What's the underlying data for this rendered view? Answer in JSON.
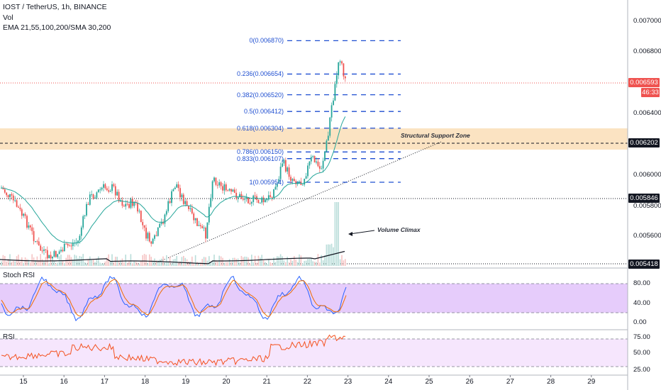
{
  "header": {
    "symbol_line": "IOST / TetherUS, 1h, BINANCE",
    "volume_label": "Vol",
    "ma_label": "EMA 21,55,100,200/SMA 30,200"
  },
  "price_axis": {
    "ticks": [
      "0.007000",
      "0.006800",
      "0.006400",
      "0.006000",
      "0.005800",
      "0.005600"
    ],
    "last_price": "0.006593",
    "countdown": "46:33",
    "support_tag": "0.006202",
    "level_tag": "0.005846",
    "low_tag": "0.005418",
    "colors": {
      "last": "#ef5350",
      "dark": "#131722"
    }
  },
  "time_axis": {
    "labels": [
      "15",
      "16",
      "17",
      "18",
      "19",
      "20",
      "21",
      "22",
      "23",
      "24",
      "25",
      "26",
      "27",
      "28",
      "29"
    ]
  },
  "fibonacci": {
    "levels": [
      {
        "ratio": 0,
        "label": "0(0.006870)",
        "price": 0.00687
      },
      {
        "ratio": 0.236,
        "label": "0.236(0.006654)",
        "price": 0.006654
      },
      {
        "ratio": 0.382,
        "label": "0.382(0.006520)",
        "price": 0.00652
      },
      {
        "ratio": 0.5,
        "label": "0.5(0.006412)",
        "price": 0.006412
      },
      {
        "ratio": 0.618,
        "label": "0.618(0.006304)",
        "price": 0.006304
      },
      {
        "ratio": 0.786,
        "label": "0.786(0.006150)",
        "price": 0.00615
      },
      {
        "ratio": 0.833,
        "label": "0.833(0.006107)",
        "price": 0.006107
      },
      {
        "ratio": 1,
        "label": "1(0.005954)",
        "price": 0.005954
      }
    ],
    "color": "#1f4fd1"
  },
  "annotations": {
    "support_zone": "Structural Support Zone",
    "volume_climax": "Volume Climax"
  },
  "stoch_rsi": {
    "label": "Stoch RSI",
    "ticks": [
      "80.00",
      "40.00",
      "0.00"
    ]
  },
  "rsi": {
    "label": "RSI",
    "ticks": [
      "75.00",
      "50.00",
      "25.00"
    ]
  },
  "colors": {
    "up": "#26a69a",
    "down": "#ef5350",
    "zone": "#fbe3c2",
    "stoch_band": "#e6ccfb",
    "rsi_band": "#f6e6fd",
    "ema": "#26a69a",
    "sma": "#131722"
  }
}
